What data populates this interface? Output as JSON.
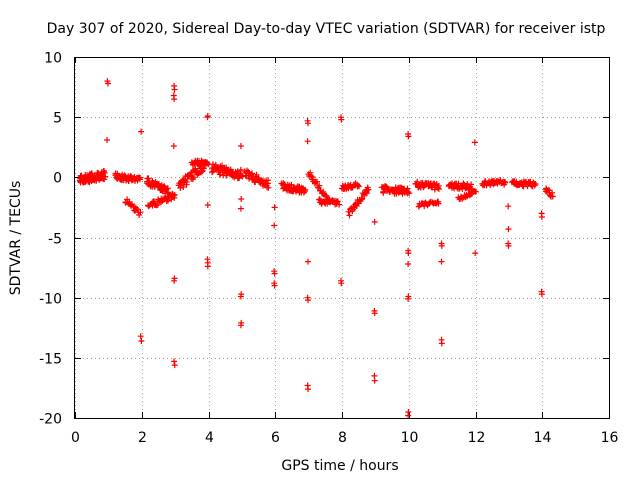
{
  "chart_data": {
    "type": "scatter",
    "title": "Day 307 of 2020, Sidereal Day-to-day VTEC variation (SDTVAR) for receiver istp",
    "xlabel": "GPS time / hours",
    "ylabel": "SDTVAR / TECUs",
    "xlim": [
      0,
      16
    ],
    "ylim": [
      -20,
      10
    ],
    "xticks": [
      0,
      2,
      4,
      6,
      8,
      10,
      12,
      14,
      16
    ],
    "yticks": [
      -20,
      -15,
      -10,
      -5,
      0,
      5,
      10
    ],
    "grid": true,
    "marker": "+",
    "color": "#ff0000",
    "series": [
      {
        "name": "SDTVAR",
        "segments": [
          {
            "x": [
              0.15,
              0.9
            ],
            "y": [
              -0.2,
              0.2
            ],
            "jitter": 0.7,
            "count": 90
          },
          {
            "x": [
              1.2,
              1.95
            ],
            "y": [
              0.1,
              -0.2
            ],
            "jitter": 0.5,
            "count": 50
          },
          {
            "x": [
              1.5,
              1.95
            ],
            "y": [
              -1.9,
              -3.0
            ],
            "jitter": 0.4,
            "count": 20
          },
          {
            "x": [
              2.15,
              2.8
            ],
            "y": [
              -0.3,
              -1.2
            ],
            "jitter": 0.6,
            "count": 45
          },
          {
            "x": [
              2.2,
              3.0
            ],
            "y": [
              -2.4,
              -1.5
            ],
            "jitter": 0.5,
            "count": 40
          },
          {
            "x": [
              3.1,
              3.9
            ],
            "y": [
              -0.8,
              1.0
            ],
            "jitter": 0.8,
            "count": 50
          },
          {
            "x": [
              3.5,
              4.0
            ],
            "y": [
              1.2,
              1.2
            ],
            "jitter": 0.4,
            "count": 25
          },
          {
            "x": [
              4.1,
              5.0
            ],
            "y": [
              0.8,
              0.2
            ],
            "jitter": 0.8,
            "count": 60
          },
          {
            "x": [
              5.1,
              5.8
            ],
            "y": [
              0.3,
              -0.6
            ],
            "jitter": 0.7,
            "count": 45
          },
          {
            "x": [
              6.2,
              6.9
            ],
            "y": [
              -0.7,
              -1.2
            ],
            "jitter": 0.6,
            "count": 45
          },
          {
            "x": [
              7.0,
              7.6
            ],
            "y": [
              0.4,
              -1.9
            ],
            "jitter": 0.4,
            "count": 25
          },
          {
            "x": [
              7.3,
              7.9
            ],
            "y": [
              -2.0,
              -2.1
            ],
            "jitter": 0.4,
            "count": 30
          },
          {
            "x": [
              8.0,
              8.5
            ],
            "y": [
              -0.9,
              -0.6
            ],
            "jitter": 0.4,
            "count": 25
          },
          {
            "x": [
              8.2,
              8.8
            ],
            "y": [
              -3.0,
              -1.0
            ],
            "jitter": 0.5,
            "count": 30
          },
          {
            "x": [
              9.2,
              10.0
            ],
            "y": [
              -1.0,
              -1.2
            ],
            "jitter": 0.6,
            "count": 50
          },
          {
            "x": [
              10.2,
              10.9
            ],
            "y": [
              -0.6,
              -0.8
            ],
            "jitter": 0.5,
            "count": 40
          },
          {
            "x": [
              10.3,
              10.9
            ],
            "y": [
              -2.3,
              -2.1
            ],
            "jitter": 0.3,
            "count": 25
          },
          {
            "x": [
              11.2,
              11.9
            ],
            "y": [
              -0.7,
              -0.8
            ],
            "jitter": 0.5,
            "count": 40
          },
          {
            "x": [
              11.5,
              12.0
            ],
            "y": [
              -1.8,
              -1.2
            ],
            "jitter": 0.3,
            "count": 20
          },
          {
            "x": [
              12.2,
              12.9
            ],
            "y": [
              -0.5,
              -0.4
            ],
            "jitter": 0.4,
            "count": 40
          },
          {
            "x": [
              13.1,
              13.8
            ],
            "y": [
              -0.5,
              -0.6
            ],
            "jitter": 0.5,
            "count": 40
          },
          {
            "x": [
              14.1,
              14.3
            ],
            "y": [
              -1.0,
              -1.5
            ],
            "jitter": 0.4,
            "count": 12
          }
        ],
        "outliers": [
          [
            0.97,
            8.0
          ],
          [
            0.99,
            7.8
          ],
          [
            0.96,
            3.1
          ],
          [
            1.98,
            3.8
          ],
          [
            1.97,
            -13.2
          ],
          [
            1.99,
            -13.6
          ],
          [
            2.97,
            7.6
          ],
          [
            2.98,
            7.3
          ],
          [
            2.96,
            6.8
          ],
          [
            2.97,
            6.5
          ],
          [
            2.96,
            2.6
          ],
          [
            2.98,
            -8.4
          ],
          [
            2.97,
            -8.6
          ],
          [
            2.97,
            -15.3
          ],
          [
            2.99,
            -15.6
          ],
          [
            3.98,
            5.1
          ],
          [
            3.97,
            5.0
          ],
          [
            3.98,
            -2.3
          ],
          [
            3.97,
            -6.8
          ],
          [
            3.98,
            -7.1
          ],
          [
            3.98,
            -7.4
          ],
          [
            4.97,
            2.6
          ],
          [
            4.98,
            -1.8
          ],
          [
            4.97,
            -2.6
          ],
          [
            4.98,
            -9.7
          ],
          [
            4.97,
            -9.9
          ],
          [
            4.98,
            -12.1
          ],
          [
            4.97,
            -12.3
          ],
          [
            5.98,
            -2.5
          ],
          [
            5.97,
            -4.0
          ],
          [
            5.97,
            -7.8
          ],
          [
            5.98,
            -8.0
          ],
          [
            5.97,
            -8.8
          ],
          [
            5.98,
            -9.0
          ],
          [
            6.97,
            4.7
          ],
          [
            6.98,
            4.5
          ],
          [
            6.97,
            3.0
          ],
          [
            6.98,
            -7.0
          ],
          [
            6.97,
            -10.0
          ],
          [
            6.98,
            -10.2
          ],
          [
            6.97,
            -17.3
          ],
          [
            6.98,
            -17.6
          ],
          [
            7.97,
            5.0
          ],
          [
            7.98,
            4.8
          ],
          [
            7.97,
            -8.6
          ],
          [
            7.98,
            -8.8
          ],
          [
            8.98,
            -3.7
          ],
          [
            8.97,
            -11.1
          ],
          [
            8.98,
            -11.3
          ],
          [
            8.97,
            -16.5
          ],
          [
            8.98,
            -16.9
          ],
          [
            9.98,
            3.6
          ],
          [
            9.99,
            3.4
          ],
          [
            9.98,
            -6.1
          ],
          [
            9.99,
            -6.3
          ],
          [
            9.98,
            -7.2
          ],
          [
            9.99,
            -9.9
          ],
          [
            9.98,
            -10.1
          ],
          [
            9.99,
            -19.5
          ],
          [
            9.98,
            -19.8
          ],
          [
            10.98,
            -5.5
          ],
          [
            10.99,
            -5.7
          ],
          [
            10.98,
            -7.0
          ],
          [
            10.98,
            -13.5
          ],
          [
            10.99,
            -13.8
          ],
          [
            11.98,
            2.9
          ],
          [
            11.99,
            -6.3
          ],
          [
            12.98,
            -2.4
          ],
          [
            12.99,
            -4.3
          ],
          [
            12.98,
            -5.5
          ],
          [
            12.99,
            -5.7
          ],
          [
            13.98,
            -3.0
          ],
          [
            13.99,
            -3.3
          ],
          [
            13.98,
            -9.5
          ],
          [
            13.99,
            -9.7
          ]
        ]
      }
    ]
  }
}
